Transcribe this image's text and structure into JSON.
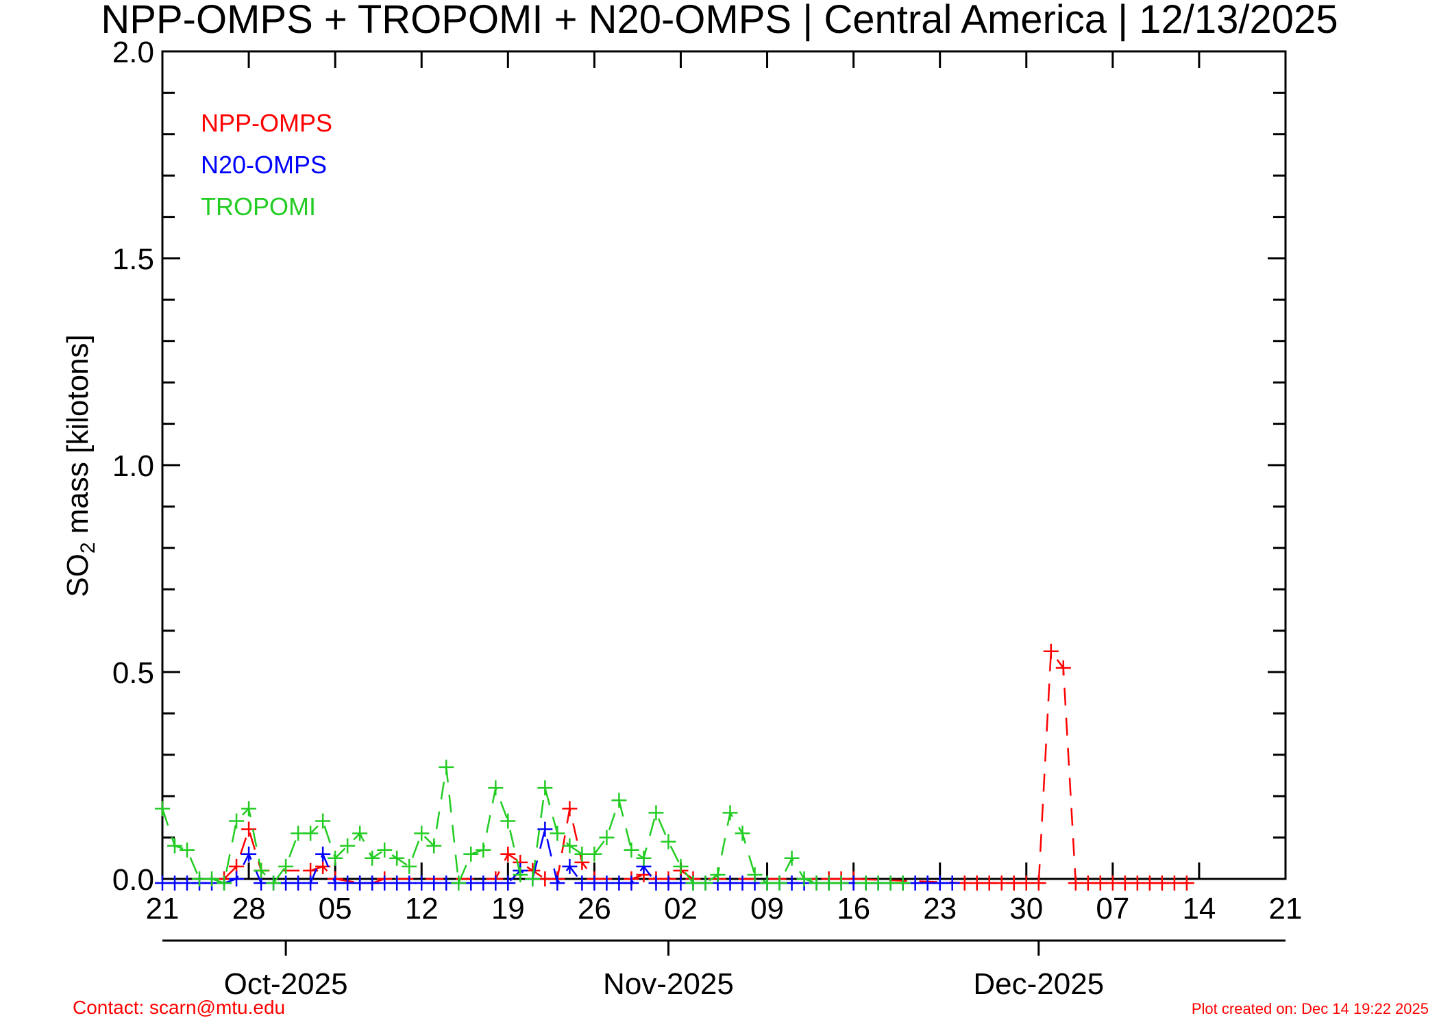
{
  "title": "NPP-OMPS + TROPOMI + N20-OMPS | Central America | 12/13/2025",
  "footer": {
    "contact": "Contact: scarn@mtu.edu",
    "created": "Plot created on: Dec 14 19:22 2025",
    "color": "#ff0000"
  },
  "chart_data": {
    "type": "line",
    "ylabel_main": "SO",
    "ylabel_sub": "2",
    "ylabel_rest": " mass [kilotons]",
    "ylim": [
      0,
      2
    ],
    "yticks": [
      "0.0",
      "0.5",
      "1.0",
      "1.5",
      "2.0"
    ],
    "xlim": [
      "2025-09-21",
      "2025-12-21"
    ],
    "xticks": [
      "21",
      "28",
      "05",
      "12",
      "19",
      "26",
      "02",
      "09",
      "16",
      "23",
      "30",
      "07",
      "14",
      "21"
    ],
    "months": [
      "Oct-2025",
      "Nov-2025",
      "Dec-2025"
    ],
    "grid": false,
    "legend_position": "top-left",
    "series": [
      {
        "name": "NPP-OMPS",
        "color": "#ff0000",
        "points": [
          [
            "2025-09-26",
            0.0
          ],
          [
            "2025-09-27",
            0.03
          ],
          [
            "2025-09-28",
            0.12
          ],
          [
            "2025-09-29",
            0.02
          ],
          [
            "2025-10-03",
            0.02
          ],
          [
            "2025-10-04",
            0.03
          ],
          [
            "2025-10-05",
            0.0
          ],
          [
            "2025-10-07",
            -0.01
          ],
          [
            "2025-10-08",
            -0.01
          ],
          [
            "2025-10-09",
            0.0
          ],
          [
            "2025-10-18",
            0.0
          ],
          [
            "2025-10-19",
            0.06
          ],
          [
            "2025-10-20",
            0.04
          ],
          [
            "2025-10-21",
            0.02
          ],
          [
            "2025-10-22",
            0.0
          ],
          [
            "2025-10-23",
            0.0
          ],
          [
            "2025-10-24",
            0.17
          ],
          [
            "2025-10-25",
            0.04
          ],
          [
            "2025-10-26",
            0.0
          ],
          [
            "2025-10-29",
            0.0
          ],
          [
            "2025-10-30",
            0.01
          ],
          [
            "2025-10-31",
            0.0
          ],
          [
            "2025-11-01",
            0.0
          ],
          [
            "2025-11-02",
            0.02
          ],
          [
            "2025-11-03",
            0.0
          ],
          [
            "2025-11-14",
            0.0
          ],
          [
            "2025-11-15",
            0.0
          ],
          [
            "2025-11-16",
            0.0
          ],
          [
            "2025-11-25",
            -0.01
          ],
          [
            "2025-11-26",
            -0.01
          ],
          [
            "2025-11-27",
            -0.01
          ],
          [
            "2025-11-28",
            -0.01
          ],
          [
            "2025-11-29",
            -0.01
          ],
          [
            "2025-11-30",
            -0.01
          ],
          [
            "2025-12-01",
            -0.01
          ],
          [
            "2025-12-02",
            0.55
          ],
          [
            "2025-12-03",
            0.51
          ],
          [
            "2025-12-04",
            -0.01
          ],
          [
            "2025-12-05",
            -0.01
          ],
          [
            "2025-12-06",
            -0.01
          ],
          [
            "2025-12-07",
            -0.01
          ],
          [
            "2025-12-08",
            -0.01
          ],
          [
            "2025-12-09",
            -0.01
          ],
          [
            "2025-12-10",
            -0.01
          ],
          [
            "2025-12-11",
            -0.01
          ],
          [
            "2025-12-12",
            -0.01
          ],
          [
            "2025-12-13",
            -0.01
          ]
        ]
      },
      {
        "name": "N20-OMPS",
        "color": "#0000ff",
        "points": [
          [
            "2025-09-21",
            -0.01
          ],
          [
            "2025-09-22",
            -0.01
          ],
          [
            "2025-09-23",
            -0.01
          ],
          [
            "2025-09-24",
            -0.01
          ],
          [
            "2025-09-25",
            -0.01
          ],
          [
            "2025-09-26",
            -0.01
          ],
          [
            "2025-09-27",
            0.0
          ],
          [
            "2025-09-28",
            0.06
          ],
          [
            "2025-09-29",
            -0.01
          ],
          [
            "2025-09-30",
            -0.01
          ],
          [
            "2025-10-01",
            -0.01
          ],
          [
            "2025-10-02",
            -0.01
          ],
          [
            "2025-10-03",
            -0.01
          ],
          [
            "2025-10-04",
            0.06
          ],
          [
            "2025-10-05",
            -0.01
          ],
          [
            "2025-10-06",
            -0.01
          ],
          [
            "2025-10-07",
            -0.01
          ],
          [
            "2025-10-08",
            -0.01
          ],
          [
            "2025-10-09",
            -0.01
          ],
          [
            "2025-10-10",
            -0.01
          ],
          [
            "2025-10-11",
            -0.01
          ],
          [
            "2025-10-12",
            -0.01
          ],
          [
            "2025-10-13",
            -0.01
          ],
          [
            "2025-10-14",
            -0.01
          ],
          [
            "2025-10-15",
            -0.01
          ],
          [
            "2025-10-16",
            -0.01
          ],
          [
            "2025-10-17",
            -0.01
          ],
          [
            "2025-10-18",
            -0.01
          ],
          [
            "2025-10-19",
            -0.01
          ],
          [
            "2025-10-20",
            0.02
          ],
          [
            "2025-10-21",
            0.0
          ],
          [
            "2025-10-22",
            0.12
          ],
          [
            "2025-10-23",
            -0.01
          ],
          [
            "2025-10-24",
            0.03
          ],
          [
            "2025-10-25",
            -0.01
          ],
          [
            "2025-10-26",
            -0.01
          ],
          [
            "2025-10-27",
            -0.01
          ],
          [
            "2025-10-28",
            -0.01
          ],
          [
            "2025-10-29",
            -0.01
          ],
          [
            "2025-10-30",
            0.03
          ],
          [
            "2025-10-31",
            -0.01
          ],
          [
            "2025-11-01",
            -0.01
          ],
          [
            "2025-11-02",
            -0.01
          ],
          [
            "2025-11-03",
            -0.01
          ],
          [
            "2025-11-04",
            -0.01
          ],
          [
            "2025-11-05",
            -0.01
          ],
          [
            "2025-11-06",
            -0.01
          ],
          [
            "2025-11-07",
            -0.01
          ],
          [
            "2025-11-08",
            -0.01
          ],
          [
            "2025-11-09",
            -0.01
          ],
          [
            "2025-11-10",
            -0.01
          ],
          [
            "2025-11-11",
            -0.01
          ],
          [
            "2025-11-12",
            -0.01
          ],
          [
            "2025-11-13",
            -0.01
          ],
          [
            "2025-11-14",
            -0.01
          ],
          [
            "2025-11-15",
            -0.01
          ],
          [
            "2025-11-16",
            -0.01
          ],
          [
            "2025-11-17",
            -0.01
          ],
          [
            "2025-11-18",
            -0.01
          ],
          [
            "2025-11-19",
            -0.01
          ],
          [
            "2025-11-20",
            -0.01
          ],
          [
            "2025-11-21",
            -0.01
          ],
          [
            "2025-11-22",
            -0.01
          ],
          [
            "2025-11-23",
            -0.01
          ],
          [
            "2025-11-24",
            -0.01
          ]
        ]
      },
      {
        "name": "TROPOMI",
        "color": "#22cc22",
        "points": [
          [
            "2025-09-21",
            0.17
          ],
          [
            "2025-09-22",
            0.08
          ],
          [
            "2025-09-23",
            0.07
          ],
          [
            "2025-09-24",
            0.0
          ],
          [
            "2025-09-25",
            0.0
          ],
          [
            "2025-09-26",
            -0.01
          ],
          [
            "2025-09-27",
            0.14
          ],
          [
            "2025-09-28",
            0.17
          ],
          [
            "2025-09-29",
            0.02
          ],
          [
            "2025-09-30",
            -0.01
          ],
          [
            "2025-10-01",
            0.03
          ],
          [
            "2025-10-02",
            0.11
          ],
          [
            "2025-10-03",
            0.11
          ],
          [
            "2025-10-04",
            0.14
          ],
          [
            "2025-10-05",
            0.05
          ],
          [
            "2025-10-06",
            0.08
          ],
          [
            "2025-10-07",
            0.11
          ],
          [
            "2025-10-08",
            0.05
          ],
          [
            "2025-10-09",
            0.07
          ],
          [
            "2025-10-10",
            0.05
          ],
          [
            "2025-10-11",
            0.03
          ],
          [
            "2025-10-12",
            0.11
          ],
          [
            "2025-10-13",
            0.08
          ],
          [
            "2025-10-14",
            0.27
          ],
          [
            "2025-10-15",
            -0.01
          ],
          [
            "2025-10-16",
            0.06
          ],
          [
            "2025-10-17",
            0.07
          ],
          [
            "2025-10-18",
            0.22
          ],
          [
            "2025-10-19",
            0.14
          ],
          [
            "2025-10-20",
            0.01
          ],
          [
            "2025-10-21",
            0.0
          ],
          [
            "2025-10-22",
            0.22
          ],
          [
            "2025-10-23",
            0.11
          ],
          [
            "2025-10-24",
            0.08
          ],
          [
            "2025-10-25",
            0.06
          ],
          [
            "2025-10-26",
            0.06
          ],
          [
            "2025-10-27",
            0.1
          ],
          [
            "2025-10-28",
            0.19
          ],
          [
            "2025-10-29",
            0.07
          ],
          [
            "2025-10-30",
            0.05
          ],
          [
            "2025-10-31",
            0.16
          ],
          [
            "2025-11-01",
            0.09
          ],
          [
            "2025-11-02",
            0.03
          ],
          [
            "2025-11-03",
            -0.01
          ],
          [
            "2025-11-04",
            -0.01
          ],
          [
            "2025-11-05",
            0.01
          ],
          [
            "2025-11-06",
            0.16
          ],
          [
            "2025-11-07",
            0.11
          ],
          [
            "2025-11-08",
            0.01
          ],
          [
            "2025-11-09",
            -0.01
          ],
          [
            "2025-11-10",
            -0.01
          ],
          [
            "2025-11-11",
            0.05
          ],
          [
            "2025-11-12",
            0.0
          ],
          [
            "2025-11-13",
            -0.01
          ],
          [
            "2025-11-14",
            -0.01
          ],
          [
            "2025-11-15",
            -0.01
          ],
          [
            "2025-11-17",
            -0.01
          ],
          [
            "2025-11-18",
            -0.01
          ],
          [
            "2025-11-19",
            -0.01
          ],
          [
            "2025-11-20",
            -0.01
          ]
        ]
      }
    ]
  }
}
